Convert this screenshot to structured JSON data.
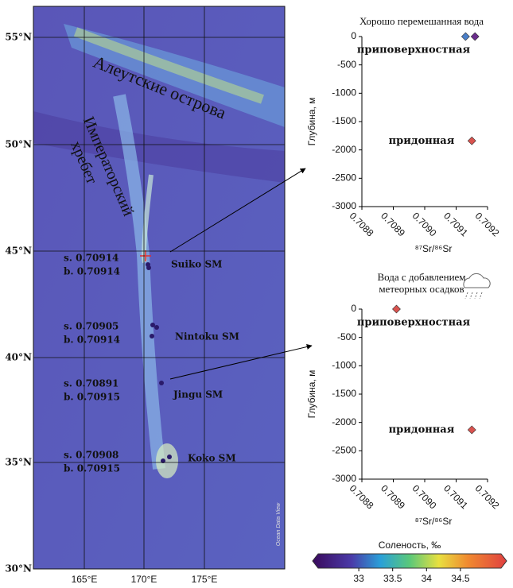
{
  "map": {
    "lat_labels": [
      "55°N",
      "50°N",
      "45°N",
      "40°N",
      "35°N",
      "30°N"
    ],
    "lon_labels": [
      "165°E",
      "170°E",
      "175°E"
    ],
    "regions": [
      "Алеутские острова",
      "Императорский",
      "хребет"
    ],
    "seamounts": [
      {
        "name": "Suiko SM",
        "surface": "s. 0.70914",
        "bottom": "b. 0.70914"
      },
      {
        "name": "Nintoku SM",
        "surface": "s. 0.70905",
        "bottom": "b. 0.70914"
      },
      {
        "name": "Jingu SM",
        "surface": "s. 0.70891",
        "bottom": "b. 0.70915"
      },
      {
        "name": "Koko SM",
        "surface": "s. 0.70908",
        "bottom": "b. 0.70915"
      }
    ],
    "credit": "Ocean Data View"
  },
  "chart_data": [
    {
      "type": "scatter",
      "title": [
        "Хорошо перемешанная вода"
      ],
      "y_label": "Глубина, м",
      "x_label": "⁸⁷Sr/⁸⁶Sr",
      "x": [
        0.70913,
        0.70916,
        0.70915
      ],
      "values": [
        0,
        0,
        -1840
      ],
      "colors": [
        "#4a7fc8",
        "#6a2c8c",
        "#d9534f"
      ],
      "annotations": [
        "приповерхностная",
        "придонная"
      ],
      "xlim": [
        0.7088,
        0.7092
      ],
      "xticks": [
        0.7088,
        0.7089,
        {
          "value": 0.709,
          "label": "0.7090"
        },
        0.7091,
        0.7092
      ],
      "ylim": [
        -3000,
        0
      ],
      "yticks": [
        0,
        -500,
        -1000,
        -1500,
        -2000,
        -2500,
        -3000
      ]
    },
    {
      "type": "scatter",
      "title": [
        "Вода с добавлением",
        "метеорных осадков"
      ],
      "y_label": "Глубина, м",
      "x_label": "⁸⁷Sr/⁸⁶Sr",
      "x": [
        0.70891,
        0.70915
      ],
      "values": [
        0,
        -2130
      ],
      "colors": [
        "#d9534f",
        "#d9534f"
      ],
      "annotations": [
        "приповерхностная",
        "придонная"
      ],
      "xlim": [
        0.7088,
        0.7092
      ],
      "xticks": [
        0.7088,
        0.7089,
        {
          "value": 0.709,
          "label": "0.7090"
        },
        0.7091,
        0.7092
      ],
      "ylim": [
        -3000,
        0
      ],
      "yticks": [
        0,
        -500,
        -1000,
        -1500,
        -2000,
        -2500,
        -3000
      ]
    }
  ],
  "colorbar": {
    "title": "Соленость, ‰",
    "lim": [
      32.4,
      35.1
    ],
    "ticks": [
      33,
      33.5,
      34,
      34.5
    ]
  }
}
